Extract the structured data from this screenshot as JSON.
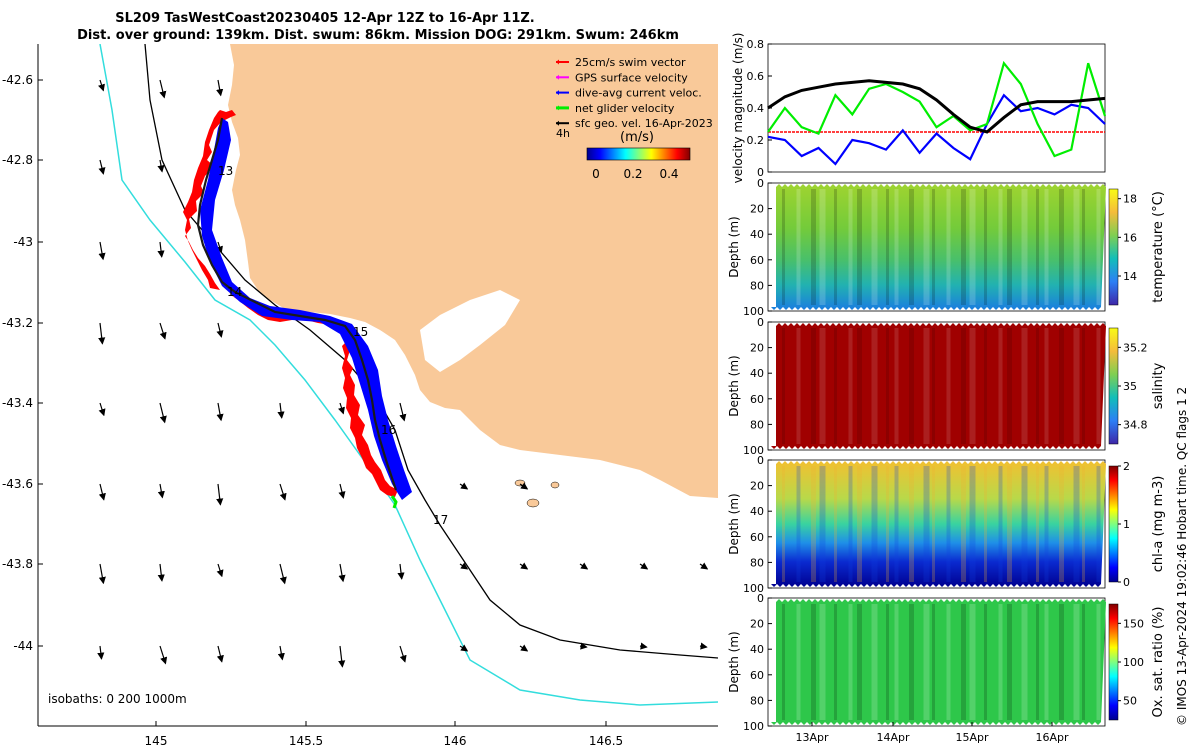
{
  "title": {
    "line1": "SL209 TasWestCoast20230405 12-Apr 12Z to 16-Apr 11Z.",
    "line2": "Dist. over ground: 139km. Dist. swum: 86km. Mission DOG: 291km. Swum: 246km"
  },
  "colors": {
    "land": "#f9c999",
    "isobath_200": "#000000",
    "isobath_1000": "#33dddd",
    "track_forward": "#ff0000",
    "track_current": "#0000ff",
    "net": "#00ee00",
    "path": "#000000",
    "swim": "#ff0000",
    "gps": "#ff00ff"
  },
  "map": {
    "x_ticks": [
      "145",
      "145.5",
      "146",
      "146.5"
    ],
    "y_ticks": [
      "-42.6",
      "-42.8",
      "-43",
      "-43.2",
      "-43.4",
      "-43.6",
      "-43.8",
      "-44"
    ],
    "legend": [
      {
        "label": "25cm/s swim vector",
        "color": "#ff0000"
      },
      {
        "label": "GPS surface velocity",
        "color": "#ff00ff"
      },
      {
        "label": "dive-avg current veloc.",
        "color": "#0000ff"
      },
      {
        "label": "net glider velocity",
        "color": "#00ee00"
      },
      {
        "label": "sfc geo. vel. 16-Apr-2023",
        "color": "#000000"
      }
    ],
    "interval_label": "4h",
    "colorbar_title": "(m/s)",
    "colorbar_ticks": [
      "0",
      "0.2",
      "0.4"
    ],
    "day_labels": [
      "13",
      "14",
      "15",
      "16",
      "17"
    ],
    "isobaths_label": "isobaths: 0   200  1000m"
  },
  "chart_data": [
    {
      "type": "line",
      "title": "",
      "xlabel": "",
      "ylabel": "velocity magnitude (m/s)",
      "ylim": [
        0,
        0.8
      ],
      "y_ticks": [
        "0",
        "0.2",
        "0.4",
        "0.6",
        "0.8"
      ],
      "x": [
        0,
        0.2,
        0.4,
        0.6,
        0.8,
        1.0,
        1.2,
        1.4,
        1.6,
        1.8,
        2.0,
        2.2,
        2.4,
        2.6,
        2.8,
        3.0,
        3.2,
        3.4,
        3.6,
        3.8,
        4.0
      ],
      "series": [
        {
          "name": "swim vector",
          "color": "#ff0000",
          "values": [
            0.25,
            0.25,
            0.25,
            0.25,
            0.25,
            0.25,
            0.25,
            0.25,
            0.25,
            0.25,
            0.25,
            0.25,
            0.25,
            0.25,
            0.25,
            0.25,
            0.25,
            0.25,
            0.25,
            0.25,
            0.25
          ]
        },
        {
          "name": "dive-avg current",
          "color": "#0000ff",
          "values": [
            0.22,
            0.2,
            0.1,
            0.15,
            0.05,
            0.2,
            0.18,
            0.14,
            0.26,
            0.12,
            0.24,
            0.15,
            0.08,
            0.3,
            0.48,
            0.38,
            0.4,
            0.36,
            0.42,
            0.4,
            0.3
          ]
        },
        {
          "name": "net glider",
          "color": "#00ee00",
          "values": [
            0.25,
            0.4,
            0.28,
            0.24,
            0.48,
            0.36,
            0.52,
            0.55,
            0.5,
            0.44,
            0.28,
            0.35,
            0.26,
            0.3,
            0.68,
            0.55,
            0.3,
            0.1,
            0.14,
            0.68,
            0.35
          ]
        },
        {
          "name": "sfc geo. vel.",
          "color": "#000000",
          "values": [
            0.4,
            0.47,
            0.51,
            0.53,
            0.55,
            0.56,
            0.57,
            0.56,
            0.55,
            0.52,
            0.45,
            0.36,
            0.28,
            0.25,
            0.34,
            0.42,
            0.44,
            0.44,
            0.44,
            0.45,
            0.46
          ]
        }
      ]
    },
    {
      "type": "heatmap",
      "ylabel": "Depth (m)",
      "ylim": [
        100,
        0
      ],
      "y_ticks": [
        "0",
        "20",
        "40",
        "60",
        "80",
        "100"
      ],
      "colorbar_label": "temperature (°C)",
      "colorbar_ticks": [
        "18",
        "16",
        "14"
      ],
      "value_range": [
        12.5,
        18.5
      ]
    },
    {
      "type": "heatmap",
      "ylabel": "Depth (m)",
      "ylim": [
        100,
        0
      ],
      "y_ticks": [
        "0",
        "20",
        "40",
        "60",
        "80",
        "100"
      ],
      "colorbar_label": "salinity",
      "colorbar_ticks": [
        "35.2",
        "35",
        "34.8"
      ],
      "value_range": [
        34.7,
        35.3
      ]
    },
    {
      "type": "heatmap",
      "ylabel": "Depth (m)",
      "ylim": [
        100,
        0
      ],
      "y_ticks": [
        "0",
        "20",
        "40",
        "60",
        "80",
        "100"
      ],
      "colorbar_label": "chl-a (mg m-3)",
      "colorbar_ticks": [
        "2",
        "1",
        "0"
      ],
      "value_range": [
        0,
        2
      ]
    },
    {
      "type": "heatmap",
      "ylabel": "Depth (m)",
      "ylim": [
        100,
        0
      ],
      "y_ticks": [
        "0",
        "20",
        "40",
        "60",
        "80",
        "100"
      ],
      "colorbar_label": "Ox. sat. ratio (%)",
      "colorbar_ticks": [
        "150",
        "100",
        "50"
      ],
      "value_range": [
        25,
        175
      ],
      "x_ticks": [
        "13Apr",
        "14Apr",
        "15Apr",
        "16Apr"
      ]
    }
  ],
  "side_text": "© IMOS 13-Apr-2024 19:02:46 Hobart time. QC flags 1  2"
}
